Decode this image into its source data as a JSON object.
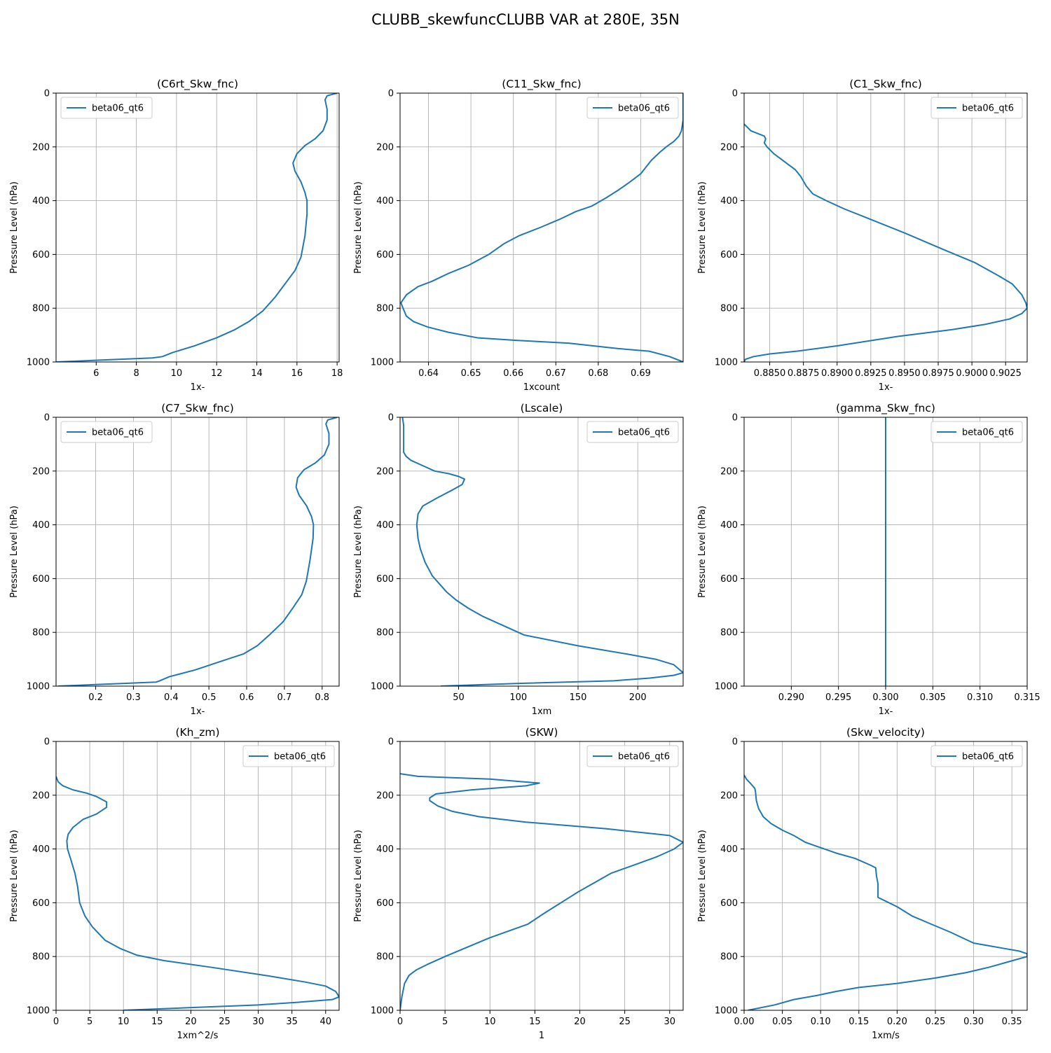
{
  "figure_title": "CLUBB_skewfuncCLUBB VAR at 280E, 35N",
  "colors": {
    "line": "#1f77b4",
    "grid": "#b0b0b0",
    "axis": "#000000"
  },
  "chart_data": [
    {
      "type": "line",
      "title": "(C6rt_Skw_fnc)",
      "xlabel": "1x-",
      "ylabel": "Pressure Level (hPa)",
      "xlim": [
        4,
        18.1
      ],
      "ylim": [
        1000,
        0
      ],
      "xticks": [
        6,
        8,
        10,
        12,
        14,
        16,
        18
      ],
      "xtick_labels": [
        "6",
        "8",
        "10",
        "12",
        "14",
        "16",
        "18"
      ],
      "yticks": [
        0,
        200,
        400,
        600,
        800,
        1000
      ],
      "ytick_labels": [
        "0",
        "200",
        "400",
        "600",
        "800",
        "1000"
      ],
      "legend": "upper left",
      "series": [
        {
          "name": "beta06_qt6",
          "x": [
            18.0,
            17.5,
            17.4,
            17.5,
            17.5,
            17.3,
            16.9,
            16.4,
            16.0,
            15.8,
            15.9,
            16.2,
            16.4,
            16.5,
            16.5,
            16.4,
            16.2,
            15.9,
            15.4,
            14.9,
            14.3,
            13.6,
            12.9,
            12.0,
            10.9,
            9.8,
            9.3,
            8.8,
            4.0
          ],
          "y": [
            0,
            10,
            25,
            60,
            100,
            140,
            170,
            195,
            225,
            260,
            290,
            330,
            370,
            400,
            450,
            530,
            610,
            660,
            710,
            760,
            810,
            850,
            880,
            910,
            940,
            965,
            980,
            985,
            1000
          ]
        }
      ]
    },
    {
      "type": "line",
      "title": "(C11_Skw_fnc)",
      "xlabel": "1xcount",
      "ylabel": "Pressure Level (hPa)",
      "xlim": [
        0.6333,
        0.7
      ],
      "ylim": [
        1000,
        0
      ],
      "xticks": [
        0.64,
        0.65,
        0.66,
        0.67,
        0.68,
        0.69
      ],
      "xtick_labels": [
        "0.64",
        "0.65",
        "0.66",
        "0.67",
        "0.68",
        "0.69"
      ],
      "yticks": [
        0,
        200,
        400,
        600,
        800,
        1000
      ],
      "ytick_labels": [
        "0",
        "200",
        "400",
        "600",
        "800",
        "1000"
      ],
      "legend": "upper right",
      "series": [
        {
          "name": "beta06_qt6",
          "x": [
            0.7,
            0.7,
            0.7,
            0.6996,
            0.699,
            0.6978,
            0.696,
            0.6945,
            0.6925,
            0.69,
            0.6875,
            0.6848,
            0.6818,
            0.6785,
            0.6748,
            0.6708,
            0.6663,
            0.6614,
            0.6578,
            0.6542,
            0.6495,
            0.6448,
            0.6408,
            0.6375,
            0.6348,
            0.6335,
            0.634,
            0.6348,
            0.6365,
            0.6398,
            0.6448,
            0.6515,
            0.661,
            0.673,
            0.6845,
            0.692,
            0.6968,
            0.7
          ],
          "y": [
            0,
            50,
            100,
            140,
            160,
            180,
            200,
            220,
            250,
            300,
            330,
            360,
            390,
            420,
            440,
            470,
            500,
            530,
            560,
            600,
            640,
            670,
            700,
            720,
            750,
            780,
            800,
            830,
            850,
            870,
            890,
            910,
            920,
            930,
            950,
            960,
            980,
            1000
          ]
        }
      ]
    },
    {
      "type": "line",
      "title": "(C1_Skw_fnc)",
      "xlabel": "1x-",
      "ylabel": "Pressure Level (hPa)",
      "xlim": [
        0.8831,
        0.9041
      ],
      "ylim": [
        1000,
        0
      ],
      "xticks": [
        0.885,
        0.8875,
        0.89,
        0.8925,
        0.895,
        0.8975,
        0.9,
        0.9025
      ],
      "xtick_labels": [
        "0.8850",
        "0.8875",
        "0.8900",
        "0.8925",
        "0.8950",
        "0.8975",
        "0.9000",
        "0.9025"
      ],
      "yticks": [
        0,
        200,
        400,
        600,
        800,
        1000
      ],
      "ytick_labels": [
        "0",
        "200",
        "400",
        "600",
        "800",
        "1000"
      ],
      "legend": "upper right",
      "series": [
        {
          "name": "beta06_qt6",
          "x": [
            0.8831,
            0.8836,
            0.8846,
            0.8847,
            0.8846,
            0.8848,
            0.8853,
            0.8861,
            0.8869,
            0.8873,
            0.8877,
            0.8882,
            0.8892,
            0.8905,
            0.8925,
            0.895,
            0.8978,
            0.9002,
            0.902,
            0.903,
            0.9037,
            0.904,
            0.9041,
            0.9037,
            0.9028,
            0.901,
            0.8985,
            0.8945,
            0.89,
            0.887,
            0.885,
            0.8838,
            0.8832,
            0.8831
          ],
          "y": [
            115,
            140,
            160,
            170,
            185,
            200,
            225,
            255,
            285,
            310,
            345,
            375,
            400,
            430,
            470,
            520,
            580,
            630,
            680,
            710,
            750,
            780,
            800,
            820,
            840,
            860,
            880,
            905,
            940,
            960,
            970,
            980,
            990,
            1000
          ]
        }
      ]
    },
    {
      "type": "line",
      "title": "(C7_Skw_fnc)",
      "xlabel": "1x-",
      "ylabel": "Pressure Level (hPa)",
      "xlim": [
        0.095,
        0.845
      ],
      "ylim": [
        1000,
        0
      ],
      "xticks": [
        0.2,
        0.3,
        0.4,
        0.5,
        0.6,
        0.7,
        0.8
      ],
      "xtick_labels": [
        "0.2",
        "0.3",
        "0.4",
        "0.5",
        "0.6",
        "0.7",
        "0.8"
      ],
      "yticks": [
        0,
        200,
        400,
        600,
        800,
        1000
      ],
      "ytick_labels": [
        "0",
        "200",
        "400",
        "600",
        "800",
        "1000"
      ],
      "legend": "upper left",
      "series": [
        {
          "name": "beta06_qt6",
          "x": [
            0.84,
            0.815,
            0.81,
            0.818,
            0.818,
            0.806,
            0.782,
            0.752,
            0.735,
            0.731,
            0.739,
            0.759,
            0.772,
            0.777,
            0.776,
            0.768,
            0.758,
            0.746,
            0.722,
            0.697,
            0.66,
            0.628,
            0.592,
            0.527,
            0.463,
            0.395,
            0.37,
            0.36,
            0.1
          ],
          "y": [
            0,
            10,
            25,
            60,
            100,
            140,
            170,
            195,
            225,
            260,
            290,
            330,
            370,
            400,
            450,
            530,
            610,
            660,
            710,
            760,
            810,
            850,
            880,
            910,
            940,
            965,
            980,
            985,
            1000
          ]
        }
      ]
    },
    {
      "type": "line",
      "title": "(Lscale)",
      "xlabel": "1xm",
      "ylabel": "Pressure Level (hPa)",
      "xlim": [
        1,
        238
      ],
      "ylim": [
        1000,
        0
      ],
      "xticks": [
        50,
        100,
        150,
        200
      ],
      "xtick_labels": [
        "50",
        "100",
        "150",
        "200"
      ],
      "yticks": [
        0,
        200,
        400,
        600,
        800,
        1000
      ],
      "ytick_labels": [
        "0",
        "200",
        "400",
        "600",
        "800",
        "1000"
      ],
      "legend": "upper right",
      "series": [
        {
          "name": "beta06_qt6",
          "x": [
            3,
            4,
            4,
            4,
            6,
            10,
            20,
            30,
            42,
            50,
            55,
            53,
            45,
            32,
            20,
            16,
            15,
            16,
            18,
            22,
            28,
            34,
            40,
            48,
            58,
            70,
            85,
            105,
            150,
            190,
            215,
            230,
            238,
            230,
            210,
            180,
            100,
            35
          ],
          "y": [
            0,
            30,
            80,
            130,
            145,
            160,
            180,
            200,
            210,
            220,
            230,
            250,
            270,
            300,
            330,
            360,
            400,
            450,
            490,
            540,
            590,
            620,
            650,
            680,
            710,
            740,
            770,
            810,
            850,
            880,
            900,
            920,
            950,
            960,
            970,
            980,
            990,
            1000
          ]
        }
      ]
    },
    {
      "type": "line",
      "title": "(gamma_Skw_fnc)",
      "xlabel": "1x-",
      "ylabel": "Pressure Level (hPa)",
      "xlim": [
        0.285,
        0.315
      ],
      "ylim": [
        1000,
        0
      ],
      "xticks": [
        0.29,
        0.295,
        0.3,
        0.305,
        0.31,
        0.315
      ],
      "xtick_labels": [
        "0.290",
        "0.295",
        "0.300",
        "0.305",
        "0.310",
        "0.315"
      ],
      "yticks": [
        0,
        200,
        400,
        600,
        800,
        1000
      ],
      "ytick_labels": [
        "0",
        "200",
        "400",
        "600",
        "800",
        "1000"
      ],
      "legend": "upper right",
      "series": [
        {
          "name": "beta06_qt6",
          "x": [
            0.3,
            0.3
          ],
          "y": [
            0,
            1000
          ]
        }
      ]
    },
    {
      "type": "line",
      "title": "(Kh_zm)",
      "xlabel": "1xm^2/s",
      "ylabel": "Pressure Level (hPa)",
      "xlim": [
        0,
        42
      ],
      "ylim": [
        1000,
        0
      ],
      "xticks": [
        0,
        5,
        10,
        15,
        20,
        25,
        30,
        35,
        40
      ],
      "xtick_labels": [
        "0",
        "5",
        "10",
        "15",
        "20",
        "25",
        "30",
        "35",
        "40"
      ],
      "yticks": [
        0,
        200,
        400,
        600,
        800,
        1000
      ],
      "ytick_labels": [
        "0",
        "200",
        "400",
        "600",
        "800",
        "1000"
      ],
      "legend": "upper right",
      "series": [
        {
          "name": "beta06_qt6",
          "x": [
            0,
            0.3,
            1,
            2.5,
            4.5,
            6,
            7.5,
            7.5,
            6,
            4,
            2.5,
            1.8,
            1.6,
            1.7,
            2.2,
            2.8,
            3.2,
            3.5,
            4.3,
            5.4,
            7.3,
            9.5,
            12,
            16,
            23,
            31,
            37,
            40,
            41.5,
            42,
            41,
            36,
            30,
            10
          ],
          "y": [
            130,
            150,
            165,
            180,
            192,
            205,
            225,
            245,
            270,
            290,
            320,
            345,
            370,
            400,
            440,
            490,
            540,
            600,
            650,
            690,
            740,
            770,
            795,
            815,
            840,
            870,
            895,
            910,
            930,
            950,
            960,
            970,
            980,
            1000
          ]
        }
      ]
    },
    {
      "type": "line",
      "title": "(SKW)",
      "xlabel": "1",
      "ylabel": "Pressure Level (hPa)",
      "xlim": [
        0,
        31.5
      ],
      "ylim": [
        1000,
        0
      ],
      "xticks": [
        0,
        5,
        10,
        15,
        20,
        25,
        30
      ],
      "xtick_labels": [
        "0",
        "5",
        "10",
        "15",
        "20",
        "25",
        "30"
      ],
      "yticks": [
        0,
        200,
        400,
        600,
        800,
        1000
      ],
      "ytick_labels": [
        "0",
        "200",
        "400",
        "600",
        "800",
        "1000"
      ],
      "legend": "upper right",
      "series": [
        {
          "name": "beta06_qt6",
          "x": [
            0,
            2,
            10,
            15.5,
            14,
            8,
            4,
            3.3,
            3.3,
            4.2,
            5.8,
            8.8,
            14,
            23,
            30,
            31.5,
            30.5,
            28.5,
            26,
            23.5,
            19.8,
            16,
            14.2,
            10,
            5,
            3,
            1.8,
            1.0,
            0.5,
            0.2,
            0
          ],
          "y": [
            120,
            130,
            140,
            155,
            165,
            180,
            195,
            210,
            220,
            240,
            260,
            280,
            300,
            325,
            350,
            375,
            400,
            430,
            460,
            490,
            560,
            640,
            680,
            730,
            800,
            830,
            850,
            870,
            900,
            950,
            1000
          ]
        }
      ]
    },
    {
      "type": "line",
      "title": "(Skw_velocity)",
      "xlabel": "1xm/s",
      "ylabel": "Pressure Level (hPa)",
      "xlim": [
        0,
        0.37
      ],
      "ylim": [
        1000,
        0
      ],
      "xticks": [
        0,
        0.05,
        0.1,
        0.15,
        0.2,
        0.25,
        0.3,
        0.35
      ],
      "xtick_labels": [
        "0.00",
        "0.05",
        "0.10",
        "0.15",
        "0.20",
        "0.25",
        "0.30",
        "0.35"
      ],
      "yticks": [
        0,
        200,
        400,
        600,
        800,
        1000
      ],
      "ytick_labels": [
        "0",
        "200",
        "400",
        "600",
        "800",
        "1000"
      ],
      "legend": "upper right",
      "series": [
        {
          "name": "beta06_qt6",
          "x": [
            0,
            0.003,
            0.008,
            0.014,
            0.015,
            0.016,
            0.019,
            0.025,
            0.035,
            0.05,
            0.065,
            0.08,
            0.095,
            0.12,
            0.145,
            0.165,
            0.172,
            0.173,
            0.175,
            0.175,
            0.2,
            0.22,
            0.245,
            0.27,
            0.3,
            0.34,
            0.36,
            0.37,
            0.37,
            0.345,
            0.32,
            0.29,
            0.25,
            0.2,
            0.15,
            0.12,
            0.095,
            0.065,
            0.04,
            0.005
          ],
          "y": [
            125,
            140,
            155,
            175,
            190,
            220,
            250,
            280,
            305,
            330,
            350,
            375,
            390,
            415,
            435,
            460,
            470,
            500,
            530,
            580,
            615,
            650,
            680,
            710,
            750,
            770,
            780,
            790,
            800,
            820,
            840,
            860,
            880,
            900,
            915,
            930,
            945,
            960,
            980,
            1000
          ]
        }
      ]
    }
  ]
}
